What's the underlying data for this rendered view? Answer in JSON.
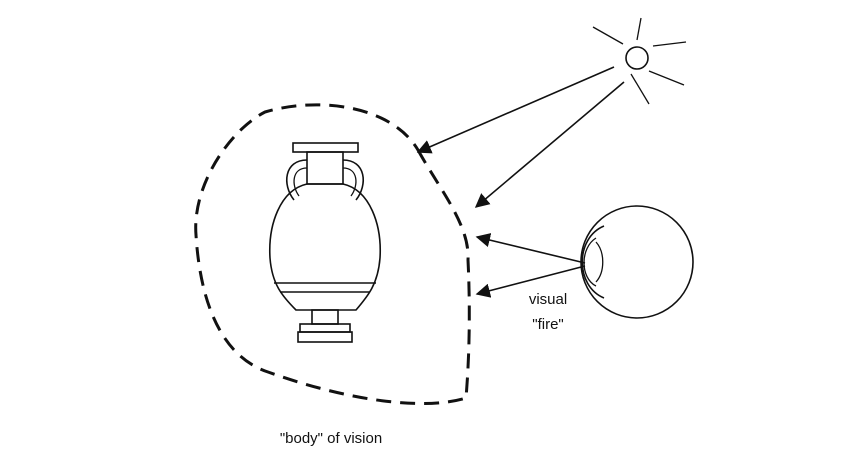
{
  "labels": {
    "visual": "visual",
    "fire": "\"fire\"",
    "body_of_vision": "\"body\" of vision"
  },
  "colors": {
    "ink": "#111111",
    "background": "#ffffff"
  },
  "icons": [
    "sun-icon",
    "eye-icon",
    "amphora-icon"
  ]
}
